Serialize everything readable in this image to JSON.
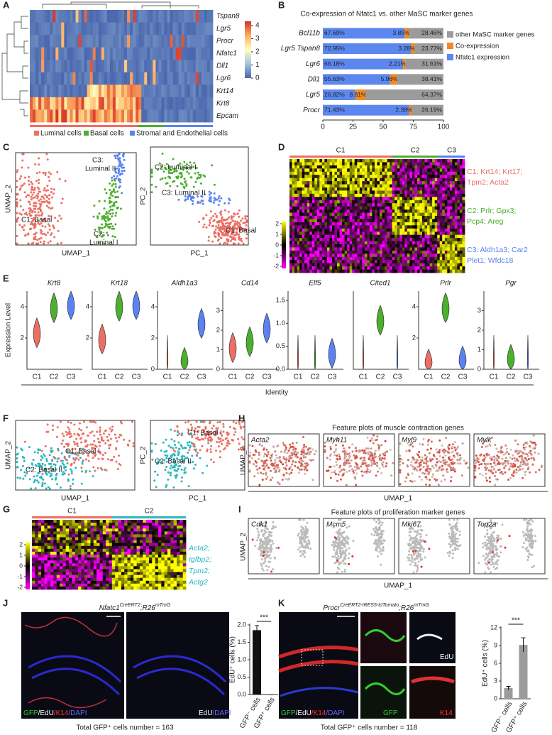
{
  "panel_labels": [
    "A",
    "B",
    "C",
    "D",
    "E",
    "F",
    "G",
    "H",
    "I",
    "J",
    "K"
  ],
  "panel_a": {
    "genes": [
      "Tspan8",
      "Lgr5",
      "Procr",
      "Nfatc1",
      "Dll1",
      "Lgr6",
      "Krt14",
      "Krt8",
      "Epcam"
    ],
    "colorbar_ticks": [
      0,
      1,
      2,
      3,
      4
    ],
    "groups": [
      "Luminal cells",
      "Basal cells",
      "Stromal and Endothelial cells"
    ]
  },
  "chart_data": [
    {
      "type": "stacked_barh",
      "title": "Co-expression of Nfatc1 vs. other MaSC marker genes",
      "categories": [
        "Bcl11b",
        "Lgr5 Tspan8",
        "Lgr6",
        "Dll1",
        "Lgr5",
        "Procr"
      ],
      "series": [
        {
          "name": "Nfatc1 expression",
          "color": "#5b87ee",
          "values": [
            67.69,
            72.95,
            66.18,
            55.63,
            26.82,
            71.43
          ],
          "value_labels": [
            "67.69%",
            "72.95%",
            "66.18%",
            "55.63%",
            "26.82%",
            "71.43%"
          ]
        },
        {
          "name": "Co-expression",
          "color": "#ee8a2a",
          "values": [
            3.85,
            3.28,
            2.21,
            5.96,
            8.81,
            2.38
          ],
          "value_labels": [
            "3.85%",
            "3.28%",
            "2.21%",
            "5.96%",
            "8.81%",
            "2.38%"
          ]
        },
        {
          "name": "other MaSC marker genes",
          "color": "#9b9b9b",
          "values": [
            28.46,
            23.77,
            31.61,
            38.41,
            64.37,
            26.19
          ],
          "value_labels": [
            "28.46%",
            "23.77%",
            "31.61%",
            "38.41%",
            "64.37%",
            "26.19%"
          ]
        }
      ],
      "xlim": [
        0,
        100
      ],
      "xticks": [
        0,
        25,
        50,
        75,
        100
      ]
    },
    {
      "type": "bar",
      "categories": [
        "GFP⁻ cells",
        "GFP⁺ cells"
      ],
      "values": [
        1.85,
        0
      ],
      "errors": [
        0.13,
        0
      ],
      "color": "#111111",
      "y_label": "EdU⁺ cells (%)",
      "significance": "***",
      "ylim": [
        0,
        2
      ],
      "yticks": [
        {
          "value": 0,
          "label": "0.0"
        },
        {
          "value": 0.5,
          "label": "0.5"
        },
        {
          "value": 1,
          "label": "1.0"
        },
        {
          "value": 1.5,
          "label": "1.5"
        },
        {
          "value": 2,
          "label": "2.0"
        }
      ]
    },
    {
      "type": "bar",
      "categories": [
        "GFP⁻ cells",
        "GFP⁺ cells"
      ],
      "values": [
        1.8,
        9.1
      ],
      "errors": [
        0.3,
        1.2
      ],
      "color": "#9b9b9b",
      "y_label": "EdU⁺ cells (%)",
      "significance": "***",
      "ylim": [
        0,
        12
      ],
      "yticks": [
        0,
        3,
        6,
        9,
        12
      ]
    }
  ],
  "panel_c": {
    "plots": [
      {
        "x_label": "UMAP_1",
        "y_label": "UMAP_2",
        "clusters": [
          [
            "C1: Basal"
          ],
          [
            "C2:",
            "Luminal I"
          ],
          [
            "C3:",
            "Luminal II"
          ]
        ]
      },
      {
        "x_label": "PC_1",
        "y_label": "PC_2",
        "clusters": [
          [
            "C1: Basal"
          ],
          [
            "C2: Luminal I"
          ],
          [
            "C3: Luminal II"
          ]
        ]
      }
    ]
  },
  "panel_d": {
    "clusters": [
      "C1",
      "C2",
      "C3"
    ],
    "gene_sets": [
      [
        "C1: Krt14; Krt17;",
        "Tpm2; Acta2"
      ],
      [
        "C2: Prlr; Gpx3;",
        "Pcp4; Areg"
      ],
      [
        "C3: Aldh1a3; Car2",
        "Plet1; Wfdc18"
      ]
    ],
    "colorbar_ticks": [
      2,
      1,
      0,
      -1,
      -2
    ]
  },
  "panel_e": {
    "y_label": "Expression Level",
    "x_label": "Identity",
    "categories": [
      "C1",
      "C2",
      "C3"
    ],
    "genes": [
      {
        "name": "Krt8",
        "ylim": [
          0,
          5
        ],
        "yticks": [
          2,
          4
        ],
        "medians": [
          2.2,
          3.8,
          4.0
        ]
      },
      {
        "name": "Krt18",
        "ylim": [
          0,
          5
        ],
        "yticks": [
          2,
          4
        ],
        "medians": [
          1.8,
          3.9,
          4.0
        ]
      },
      {
        "name": "Aldh1a3",
        "ylim": [
          0,
          5
        ],
        "yticks": [
          0,
          2,
          4
        ],
        "medians": [
          0,
          0.3,
          2.8
        ]
      },
      {
        "name": "Cd14",
        "ylim": [
          0,
          4
        ],
        "yticks": [
          0,
          1,
          2,
          3
        ],
        "medians": [
          1.0,
          1.3,
          2.0
        ]
      },
      {
        "name": "Elf5",
        "ylim": [
          0,
          1.7
        ],
        "yticks": [
          {
            "value": 0,
            "label": "0.0"
          },
          {
            "value": 0.5,
            "label": "0.5"
          },
          {
            "value": 1,
            "label": "1.0"
          },
          {
            "value": 1.5,
            "label": "1.5"
          }
        ],
        "medians": [
          0,
          0,
          0.3
        ]
      },
      {
        "name": "Cited1",
        "ylim": [
          0,
          2
        ],
        "medians": [
          0,
          1.2,
          0
        ]
      },
      {
        "name": "Prlr",
        "ylim": [
          0,
          5
        ],
        "yticks": [
          2,
          4
        ],
        "medians": [
          0.2,
          3.8,
          0.4
        ]
      },
      {
        "name": "Pgr",
        "ylim": [
          0,
          4
        ],
        "yticks": [
          0,
          1,
          2,
          3
        ],
        "medians": [
          0,
          0.4,
          0
        ]
      }
    ]
  },
  "panel_f": {
    "plots": [
      {
        "x_label": "UMAP_1",
        "y_label": "UMAP_2",
        "clusters": [
          "C1: Basal I",
          "C2: Basal II"
        ]
      },
      {
        "x_label": "PC_1",
        "y_label": "PC_2",
        "clusters": [
          "C1: Basal I",
          "C2: Basal II"
        ]
      }
    ]
  },
  "panel_g": {
    "clusters": [
      "C1",
      "C2"
    ],
    "genes": [
      "Acta2;",
      "Igfbp2;",
      "Tpm2;",
      "Actg2"
    ],
    "colorbar_ticks": [
      2,
      1,
      0,
      -1,
      -2
    ]
  },
  "panel_h": {
    "title": "Feature plots of muscle contraction genes",
    "genes": [
      "Acta2",
      "Myh11",
      "Myl9",
      "Mylk"
    ],
    "x_label": "UMAP_1",
    "y_label": "UMAP_2"
  },
  "panel_i": {
    "title": "Feature plots of proliferation marker genes",
    "genes": [
      "Cdk1",
      "Mcm5",
      "Mki67",
      "Top2a"
    ],
    "x_label": "UMAP_1",
    "y_label": "UMAP_2"
  },
  "panel_j": {
    "title_parts": [
      "Nfatc1",
      "CreERT2",
      ";R26",
      "mTmG"
    ],
    "image_labels": [
      [
        "GFP",
        "/EdU",
        "/K14",
        "/DAPI"
      ],
      [
        "EdU",
        "/DAPI"
      ]
    ],
    "total": "Total GFP⁺ cells number = 163"
  },
  "panel_k": {
    "title_parts": [
      "Procr",
      "CreERT2-IRES5-tdTomato",
      ";R26",
      "mTmG"
    ],
    "image_labels": [
      [
        "GFP",
        "/EdU",
        "/K14",
        "/DAPI"
      ],
      [
        "EdU"
      ],
      [
        "GFP"
      ],
      [
        "K14"
      ]
    ],
    "total": "Total GFP⁺ cells number = 118"
  }
}
